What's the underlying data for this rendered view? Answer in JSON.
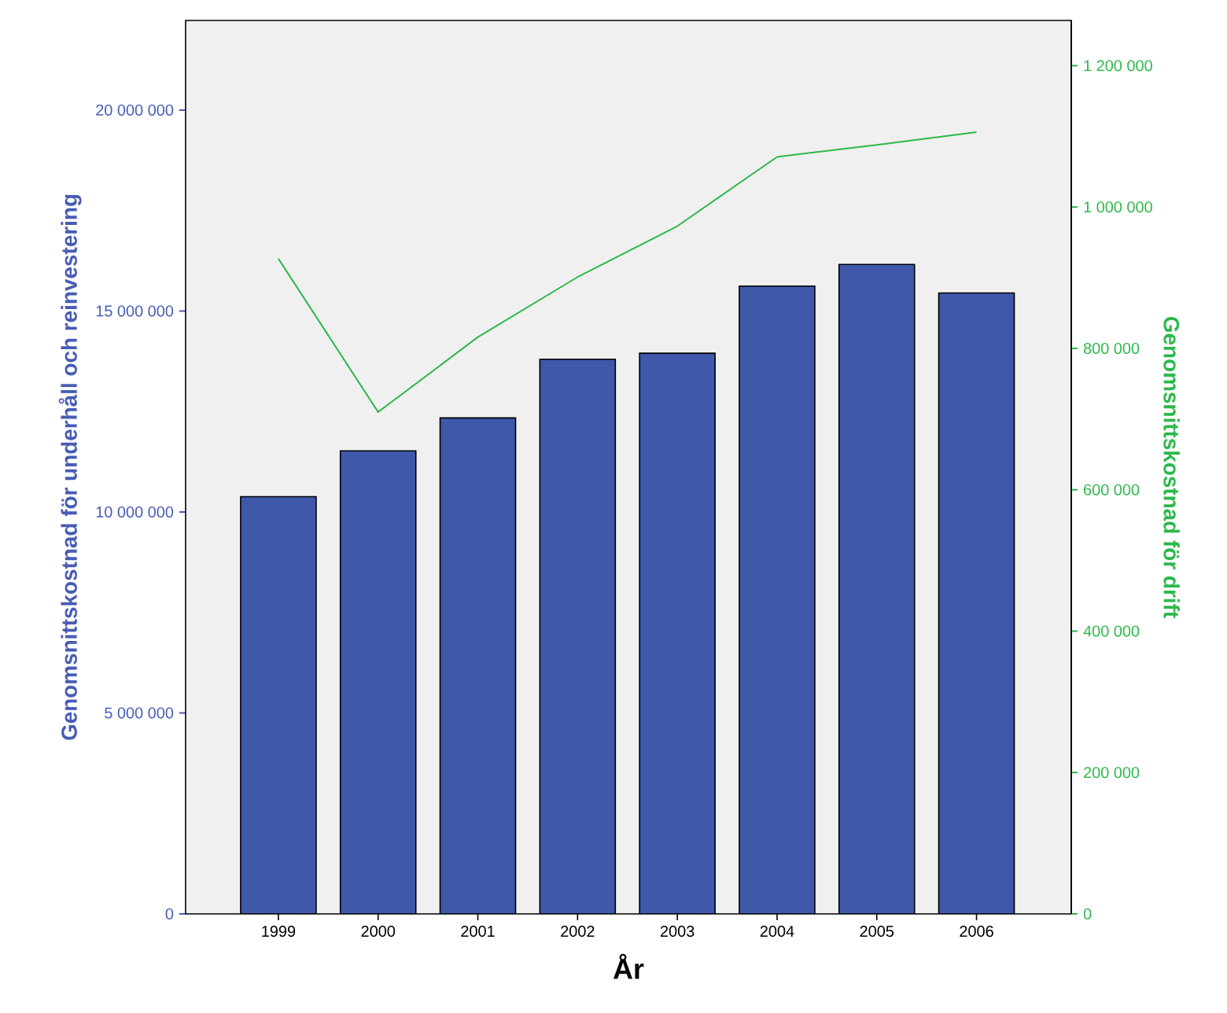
{
  "chart_data": {
    "type": "bar",
    "xlabel": "År",
    "ylabel": "Genomsnittskostnad för underhåll och reinvestering",
    "y2label": "Genomsnittskostnad för drift",
    "categories": [
      "1999",
      "2000",
      "2001",
      "2002",
      "2003",
      "2004",
      "2005",
      "2006"
    ],
    "series": [
      {
        "color": "#3f58aa",
        "values": [
          10380000,
          11520000,
          12340000,
          13800000,
          13950000,
          15620000,
          16160000,
          15450000
        ]
      },
      {
        "type": "line",
        "axis": "y2",
        "color": "#2db84a",
        "values": [
          927000,
          710000,
          816000,
          901000,
          973000,
          1071000,
          1088000,
          1106000
        ]
      }
    ],
    "ylim": [
      0,
      22230000
    ],
    "yticks": [
      0,
      {
        "value": 5000000,
        "label": "5 000 000"
      },
      {
        "value": 10000000,
        "label": "10 000 000"
      },
      {
        "value": 15000000,
        "label": "15 000 000"
      },
      {
        "value": 20000000,
        "label": "20 000 000"
      }
    ],
    "y2lim": [
      0,
      1264000
    ],
    "y2ticks": [
      0,
      {
        "value": 200000,
        "label": "200 000"
      },
      {
        "value": 400000,
        "label": "400 000"
      },
      {
        "value": 600000,
        "label": "600 000"
      },
      {
        "value": 800000,
        "label": "800 000"
      },
      {
        "value": 1000000,
        "label": "1 000 000"
      },
      {
        "value": 1200000,
        "label": "1 200 000"
      }
    ],
    "grid": false
  }
}
